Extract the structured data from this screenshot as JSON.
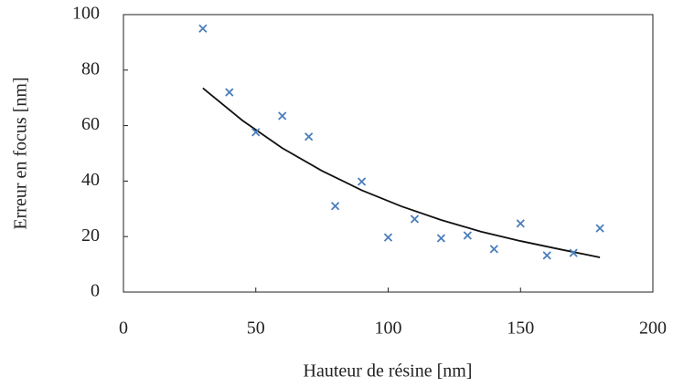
{
  "chart_data": {
    "type": "scatter",
    "xlabel": "Hauteur de résine [nm]",
    "ylabel": "Erreur en focus [nm]",
    "xlim": [
      0,
      200
    ],
    "xticks": [
      0,
      50,
      100,
      150,
      200
    ],
    "ylim": [
      0,
      100
    ],
    "yticks": [
      0,
      20,
      40,
      60,
      80,
      100
    ],
    "color": "#4a7ebb",
    "x": [
      30,
      40,
      50,
      60,
      70,
      80,
      90,
      100,
      110,
      120,
      130,
      140,
      150,
      160,
      170,
      180
    ],
    "values": [
      95,
      72,
      57.6,
      63.5,
      56,
      31,
      39.8,
      19.7,
      26.3,
      19.4,
      20.4,
      15.5,
      24.7,
      13.2,
      14.1,
      23
    ],
    "trend": {
      "color": "#111111",
      "x": [
        30,
        45,
        60,
        75,
        90,
        105,
        120,
        135,
        150,
        165,
        180
      ],
      "values": [
        73.5,
        61.8,
        51.9,
        43.7,
        36.7,
        30.9,
        26.0,
        21.8,
        18.4,
        15.4,
        12.5
      ]
    }
  }
}
